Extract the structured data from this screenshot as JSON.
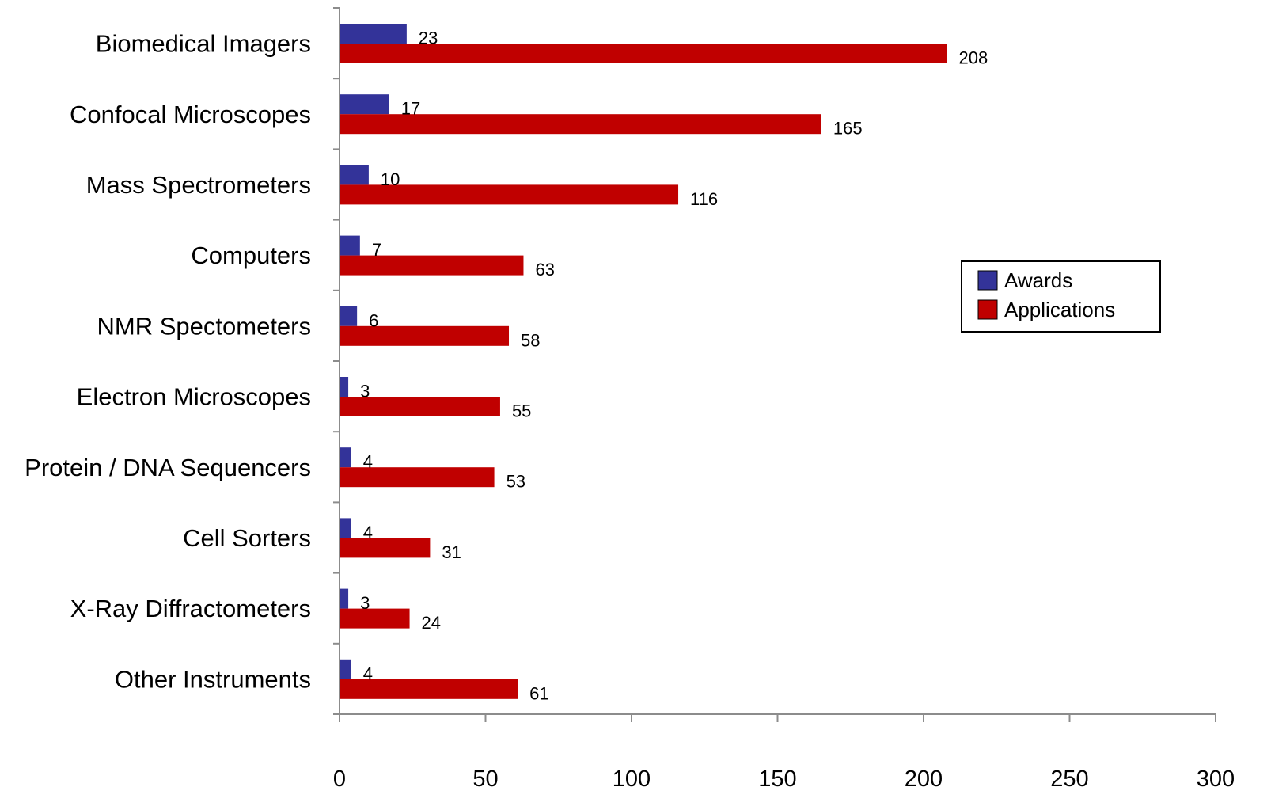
{
  "chart_data": {
    "type": "bar",
    "orientation": "horizontal",
    "categories": [
      "Biomedical Imagers",
      "Confocal Microscopes",
      "Mass Spectrometers",
      "Computers",
      "NMR Spectometers",
      "Electron Microscopes",
      "Protein / DNA Sequencers",
      "Cell Sorters",
      "X-Ray Diffractometers",
      "Other Instruments"
    ],
    "series": [
      {
        "name": "Awards",
        "color": "#333399",
        "values": [
          23,
          17,
          10,
          7,
          6,
          3,
          4,
          4,
          3,
          4
        ]
      },
      {
        "name": "Applications",
        "color": "#c00000",
        "values": [
          208,
          165,
          116,
          63,
          58,
          55,
          53,
          31,
          24,
          61
        ]
      }
    ],
    "title": "",
    "xlabel": "",
    "ylabel": "",
    "xlim": [
      0,
      300
    ],
    "x_ticks": [
      0,
      50,
      100,
      150,
      200,
      250,
      300
    ],
    "grid": false,
    "legend_position": "right"
  }
}
